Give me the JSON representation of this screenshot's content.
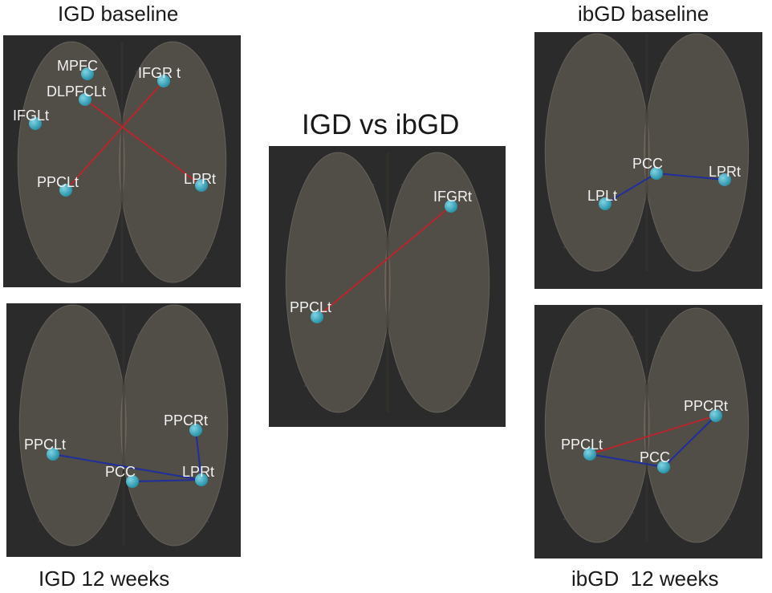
{
  "colors": {
    "background": "#ffffff",
    "panel": "#2b2b2b",
    "brain": "#7d7468",
    "node": "#2a93a8",
    "positive_edge": "#b8262b",
    "negative_edge": "#1f2f9c"
  },
  "panels": [
    {
      "key": "igd_baseline",
      "title": "IGD baseline",
      "nodes": [
        {
          "id": "mpfc",
          "label": "MPFC"
        },
        {
          "id": "ifgrt",
          "label": "IFGR t"
        },
        {
          "id": "dlpfcl",
          "label": "DLPFCLt"
        },
        {
          "id": "ifglt",
          "label": "IFGLt"
        },
        {
          "id": "ppclt",
          "label": "PPCLt"
        },
        {
          "id": "lprt",
          "label": "LPRt"
        }
      ],
      "edges": [
        {
          "from": "ifgrt",
          "to": "ppclt",
          "type": "positive"
        },
        {
          "from": "dlpfcl",
          "to": "lprt",
          "type": "positive"
        }
      ]
    },
    {
      "key": "igd_vs_ibgd",
      "title": "IGD vs ibGD",
      "nodes": [
        {
          "id": "ifgrt",
          "label": "IFGRt"
        },
        {
          "id": "ppclt",
          "label": "PPCLt"
        }
      ],
      "edges": [
        {
          "from": "ifgrt",
          "to": "ppclt",
          "type": "positive"
        }
      ]
    },
    {
      "key": "ibgd_baseline",
      "title": "ibGD baseline",
      "nodes": [
        {
          "id": "pcc",
          "label": "PCC"
        },
        {
          "id": "lprt",
          "label": "LPRt"
        },
        {
          "id": "lplt",
          "label": "LPLt"
        }
      ],
      "edges": [
        {
          "from": "pcc",
          "to": "lprt",
          "type": "negative"
        },
        {
          "from": "pcc",
          "to": "lplt",
          "type": "negative"
        }
      ]
    },
    {
      "key": "igd_12_weeks",
      "title": "IGD 12 weeks",
      "nodes": [
        {
          "id": "ppcrt",
          "label": "PPCRt"
        },
        {
          "id": "ppclt",
          "label": "PPCLt"
        },
        {
          "id": "pcc",
          "label": "PCC"
        },
        {
          "id": "lprt",
          "label": "LPRt"
        }
      ],
      "edges": [
        {
          "from": "ppclt",
          "to": "lprt",
          "type": "negative"
        },
        {
          "from": "pcc",
          "to": "lprt",
          "type": "negative"
        },
        {
          "from": "ppcrt",
          "to": "lprt",
          "type": "negative"
        }
      ]
    },
    {
      "key": "ibgd_12_weeks",
      "title": "ibGD  12 weeks",
      "nodes": [
        {
          "id": "ppcrt",
          "label": "PPCRt"
        },
        {
          "id": "ppclt",
          "label": "PPCLt"
        },
        {
          "id": "pcc",
          "label": "PCC"
        }
      ],
      "edges": [
        {
          "from": "ppclt",
          "to": "ppcrt",
          "type": "positive"
        },
        {
          "from": "ppclt",
          "to": "pcc",
          "type": "negative"
        },
        {
          "from": "pcc",
          "to": "ppcrt",
          "type": "negative"
        }
      ]
    }
  ]
}
